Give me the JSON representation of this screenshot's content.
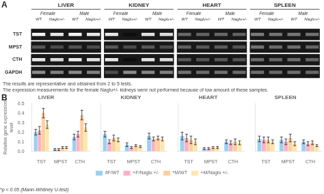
{
  "chart_data": [
    {
      "type": "heatmap",
      "title": "A",
      "rows": [
        "TST",
        "MPST",
        "CTH",
        "GAPDH"
      ],
      "groups": [
        {
          "name": "LIVER",
          "subgroups": [
            {
              "name": "Female",
              "categories": [
                "WT",
                "Naglu+/-"
              ]
            },
            {
              "name": "Male",
              "categories": [
                "WT",
                "Naglu+/-"
              ]
            }
          ]
        },
        {
          "name": "KIDNEY",
          "subgroups": [
            {
              "name": "Female",
              "categories": [
                "WT",
                "Naglu+/-"
              ]
            },
            {
              "name": "Male",
              "categories": [
                "WT",
                "Naglu+/-"
              ]
            }
          ]
        },
        {
          "name": "HEART",
          "subgroups": [
            {
              "name": "Female",
              "categories": [
                "WT",
                "Naglu+/-"
              ]
            },
            {
              "name": "Male",
              "categories": [
                "WT",
                "Naglu+/-"
              ]
            }
          ]
        },
        {
          "name": "SPLEEN",
          "subgroups": [
            {
              "name": "Female",
              "categories": [
                "WT",
                "Naglu+/-"
              ]
            },
            {
              "name": "Male",
              "categories": [
                "WT",
                "Naglu+/-"
              ]
            }
          ]
        }
      ],
      "cells": [
        [
          0.95,
          0.9,
          0.95,
          0.9,
          0.9,
          0.05,
          0.88,
          0.85,
          0.4,
          0.38,
          0.4,
          0.38,
          0.48,
          0.45,
          0.46,
          0.44
        ],
        [
          0.35,
          0.3,
          0.33,
          0.3,
          0.35,
          0.3,
          0.35,
          0.3,
          0.38,
          0.35,
          0.36,
          0.33,
          0.45,
          0.42,
          0.44,
          0.4
        ],
        [
          0.9,
          0.85,
          0.92,
          0.88,
          0.9,
          0.05,
          0.88,
          0.85,
          0.35,
          0.33,
          0.35,
          0.33,
          0.42,
          0.4,
          0.42,
          0.4
        ],
        [
          0.55,
          0.5,
          0.55,
          0.5,
          0.3,
          0.55,
          0.52,
          0.5,
          0.45,
          0.42,
          0.44,
          0.42,
          0.43,
          0.41,
          0.43,
          0.41
        ]
      ],
      "color": "#181818",
      "annotations": [
        "The results are representative and obtained from 2 to 5 tests.",
        "The expression measurements for the female Naglu+/- kidneys were not performed because of low amount of these samples."
      ]
    },
    {
      "type": "bar",
      "title": "B",
      "ylabel": "Relative gene expression\nlevel",
      "categories": [
        "TST",
        "MPST",
        "CTH"
      ],
      "ylim": [
        0,
        0.5
      ],
      "yticks": [
        {
          "value": 0,
          "label": "0.0"
        },
        0.1,
        0.2,
        0.3,
        0.4,
        0.5
      ],
      "grid": false,
      "legend": "bottom",
      "series": [
        {
          "name": "#F/WT"
        },
        {
          "name": "+F/Naglu +/-"
        },
        {
          "name": "*M/WT"
        },
        {
          "name": "+M/Naglu +/-"
        }
      ],
      "panels": [
        {
          "title": "LIVER",
          "values": [
            [
              0.2,
              0.02,
              0.15
            ],
            [
              0.22,
              0.02,
              0.18
            ],
            [
              0.4,
              0.04,
              0.38
            ],
            [
              0.28,
              0.04,
              0.25
            ]
          ],
          "errors": [
            [
              0.03,
              0.01,
              0.03
            ],
            [
              0.04,
              0.01,
              0.03
            ],
            [
              0.05,
              0.01,
              0.05
            ],
            [
              0.04,
              0.01,
              0.04
            ]
          ]
        },
        {
          "title": "KIDNEY",
          "tick_labels": "x",
          "values": [
            [
              0.18,
              0.07,
              0.16
            ],
            [
              0.1,
              0.04,
              0.13
            ],
            [
              0.14,
              0.06,
              0.14
            ],
            [
              0.12,
              0.05,
              0.13
            ]
          ],
          "errors": [
            [
              0.03,
              0.02,
              0.03
            ],
            [
              0.02,
              0.01,
              0.02
            ],
            [
              0.03,
              0.01,
              0.02
            ],
            [
              0.02,
              0.01,
              0.02
            ]
          ]
        },
        {
          "title": "HEART",
          "tick_labels": "x",
          "values": [
            [
              0.16,
              0.03,
              0.1
            ],
            [
              0.14,
              0.03,
              0.09
            ],
            [
              0.12,
              0.04,
              0.1
            ],
            [
              0.1,
              0.04,
              0.09
            ]
          ],
          "errors": [
            [
              0.04,
              0.01,
              0.02
            ],
            [
              0.04,
              0.01,
              0.02
            ],
            [
              0.04,
              0.01,
              0.03
            ],
            [
              0.03,
              0.01,
              0.02
            ]
          ]
        },
        {
          "title": "SPLEEN",
          "tick_labels": "x",
          "values": [
            [
              0.13,
              0.12,
              0.1
            ],
            [
              0.12,
              0.1,
              0.08
            ],
            [
              0.12,
              0.14,
              0.09
            ],
            [
              0.1,
              0.08,
              0.06
            ]
          ],
          "errors": [
            [
              0.03,
              0.03,
              0.02
            ],
            [
              0.03,
              0.03,
              0.02
            ],
            [
              0.03,
              0.04,
              0.02
            ],
            [
              0.02,
              0.02,
              0.01
            ]
          ]
        }
      ],
      "annotations": [
        "*p < 0.05 (Mann-Whitney U-test)"
      ]
    }
  ]
}
